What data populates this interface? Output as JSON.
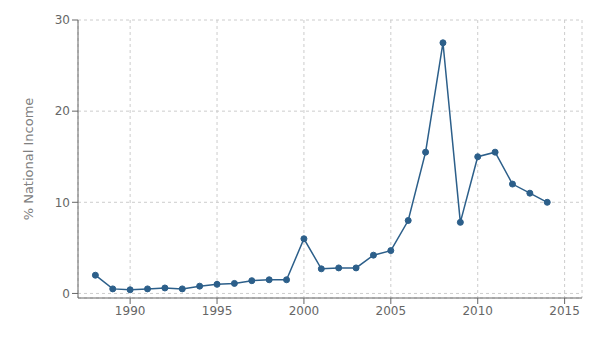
{
  "chart_data": {
    "type": "line",
    "x": [
      1988,
      1989,
      1990,
      1991,
      1992,
      1993,
      1994,
      1995,
      1996,
      1997,
      1998,
      1999,
      2000,
      2001,
      2002,
      2003,
      2004,
      2005,
      2006,
      2007,
      2008,
      2009,
      2010,
      2011,
      2012,
      2013,
      2014
    ],
    "values": [
      2.0,
      0.5,
      0.4,
      0.5,
      0.6,
      0.5,
      0.8,
      1.0,
      1.1,
      1.4,
      1.5,
      1.5,
      6.0,
      2.7,
      2.8,
      2.8,
      4.2,
      4.7,
      8.0,
      15.5,
      27.5,
      7.8,
      15.0,
      15.5,
      12.0,
      11.0,
      10.0
    ],
    "color": "#2c5f8a",
    "marker": "circle",
    "ylabel": "% National Income",
    "xlim": [
      1987,
      2016
    ],
    "ylim": [
      -0.5,
      30
    ],
    "xticks": [
      1990,
      1995,
      2000,
      2005,
      2010,
      2015
    ],
    "yticks": [
      0,
      10,
      20,
      30
    ],
    "grid": true
  }
}
